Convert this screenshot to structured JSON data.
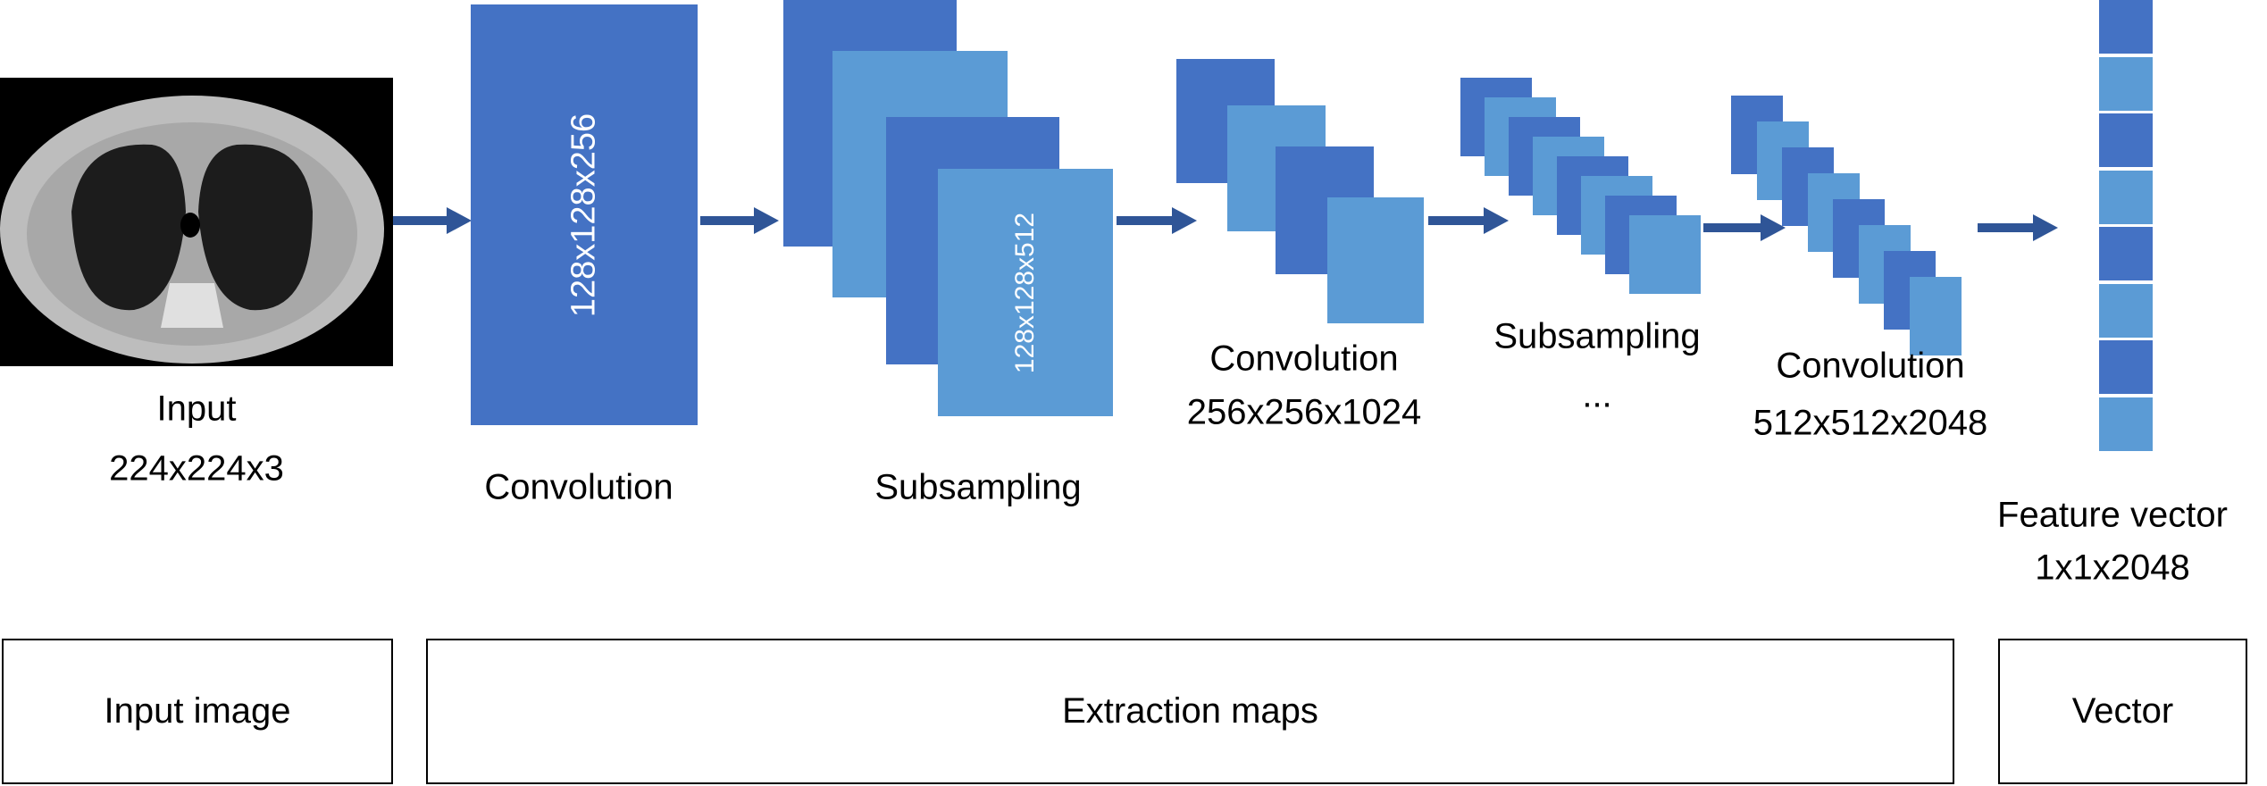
{
  "colors": {
    "dark_block": "#4472C4",
    "light_block": "#5B9BD5",
    "arrow": "#2F5597"
  },
  "input": {
    "label": "Input",
    "size": "224x224x3",
    "image": "chest-ct-scan"
  },
  "stage1": {
    "label": "Convolution",
    "block_text": "128x128x256"
  },
  "stage2": {
    "label": "Subsampling",
    "block_text": "128x128x512"
  },
  "stage3": {
    "label": "Convolution",
    "size": "256x256x1024"
  },
  "stage4": {
    "label": "Subsampling",
    "ellipsis": "..."
  },
  "stage5": {
    "label": "Convolution",
    "size": "512x512x2048"
  },
  "output": {
    "label": "Feature vector",
    "size": "1x1x2048"
  },
  "sections": {
    "input": "Input image",
    "maps": "Extraction maps",
    "vector": "Vector"
  }
}
